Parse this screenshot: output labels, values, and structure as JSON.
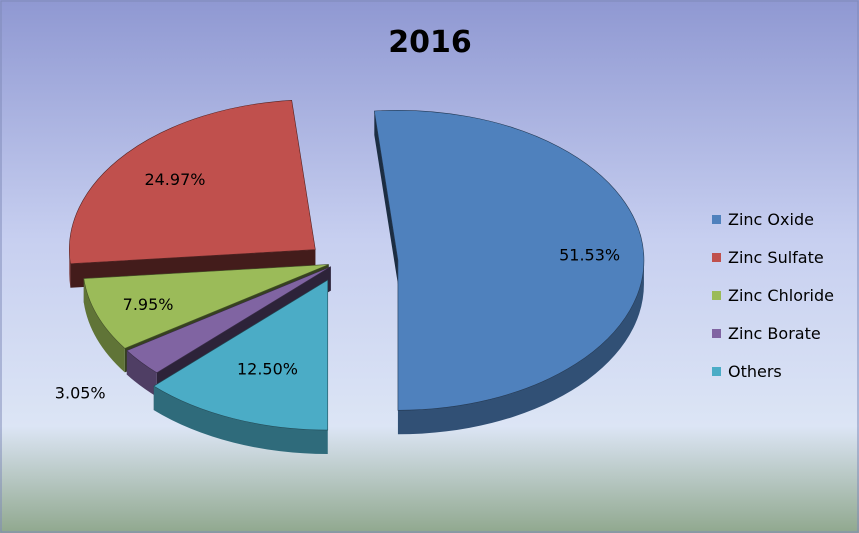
{
  "chart_data": {
    "type": "pie",
    "title": "2016",
    "categories": [
      "Zinc Oxide",
      "Zinc Sulfate",
      "Zinc Chloride",
      "Zinc Borate",
      "Others"
    ],
    "values": [
      51.53,
      24.97,
      7.95,
      3.05,
      12.5
    ],
    "data_labels": [
      "51.53%",
      "24.97%",
      "7.95%",
      "3.05%",
      "12.50%"
    ],
    "colors": [
      "#4F81BD",
      "#C0504D",
      "#9BBB59",
      "#8064A2",
      "#4BACC6"
    ],
    "exploded": true,
    "three_d": true,
    "legend": "right",
    "background": "gradient-blue"
  }
}
